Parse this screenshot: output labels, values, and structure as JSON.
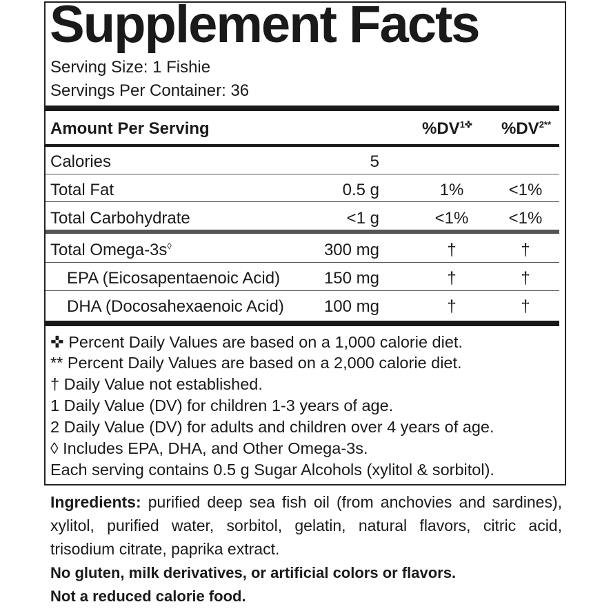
{
  "title": "Supplement Facts",
  "serving_size": "Serving Size: 1 Fishie",
  "servings_per_container": "Servings Per Container: 36",
  "header": {
    "amount": "Amount Per Serving",
    "dv1": "%DV",
    "dv1_sup": "1✜",
    "dv2": "%DV",
    "dv2_sup": "2**"
  },
  "rows": [
    {
      "name": "Calories",
      "amount": "5",
      "dv1": "",
      "dv2": ""
    },
    {
      "name": "Total Fat",
      "amount": "0.5 g",
      "dv1": "1%",
      "dv2": "<1%"
    },
    {
      "name": "Total Carbohydrate",
      "amount": "<1 g",
      "dv1": "<1%",
      "dv2": "<1%"
    },
    {
      "name": "Total Omega-3s",
      "name_sup": "◊",
      "amount": "300 mg",
      "dv1": "†",
      "dv2": "†"
    },
    {
      "name": "EPA (Eicosapentaenoic Acid)",
      "amount": "150 mg",
      "dv1": "†",
      "dv2": "†"
    },
    {
      "name": "DHA (Docosahexaenoic Acid)",
      "amount": "100 mg",
      "dv1": "†",
      "dv2": "†"
    }
  ],
  "footnotes": [
    "✜ Percent Daily Values are based on a 1,000 calorie diet.",
    "** Percent Daily Values are based on a 2,000 calorie diet.",
    "† Daily Value not established.",
    "1 Daily Value (DV) for children 1-3 years of age.",
    "2 Daily Value (DV) for adults and children over 4 years of age.",
    "◊ Includes EPA, DHA, and Other Omega-3s.",
    "Each serving contains 0.5 g Sugar Alcohols (xylitol & sorbitol)."
  ],
  "ingredients_label": "Ingredients:",
  "ingredients": " purified deep sea fish oil (from anchovies and sardines), xylitol, purified water, sorbitol, gelatin, natural flavors, citric acid, trisodium citrate, paprika extract.",
  "statement1": "No gluten, milk derivatives, or artificial colors or flavors.",
  "statement2": "Not a reduced calorie food."
}
